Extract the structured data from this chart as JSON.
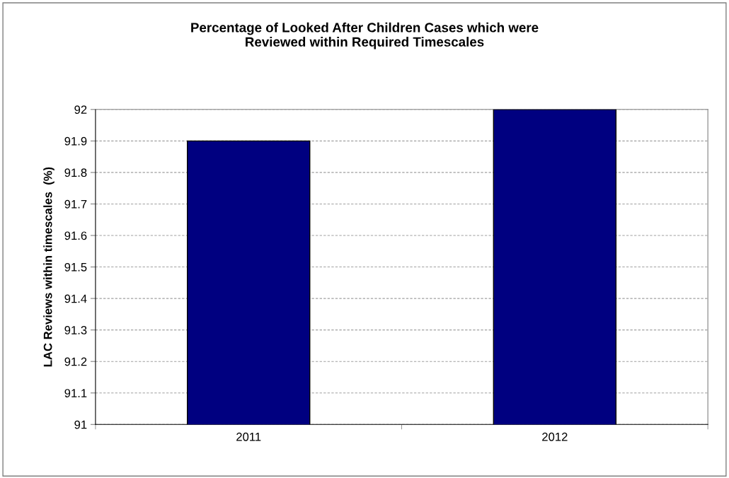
{
  "chart_data": {
    "type": "bar",
    "title": "Percentage of Looked After Children Cases which were\nReviewed within Required Timescales",
    "ylabel": "LAC Reviews within timescales  (%)",
    "categories": [
      "2011",
      "2012"
    ],
    "values": [
      91.9,
      92
    ],
    "color": "#000080",
    "ylim": [
      91,
      92
    ],
    "yticks": [
      91,
      91.1,
      91.2,
      91.3,
      91.4,
      91.5,
      91.6,
      91.7,
      91.8,
      91.9,
      92
    ],
    "grid": "y"
  }
}
